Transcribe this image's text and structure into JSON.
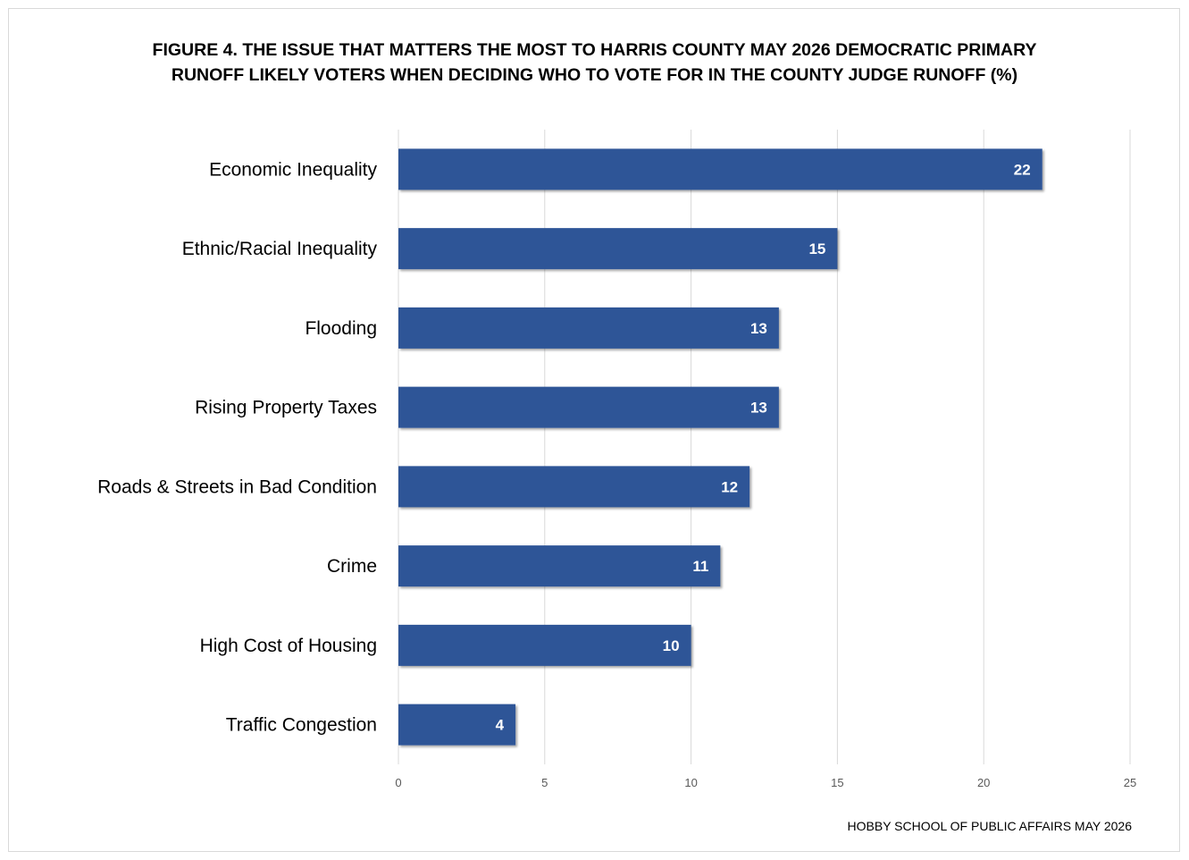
{
  "chart_data": {
    "type": "bar",
    "orientation": "horizontal",
    "title_lines": [
      "FIGURE 4. THE ISSUE THAT MATTERS THE MOST TO HARRIS COUNTY MAY 2026 DEMOCRATIC PRIMARY",
      "RUNOFF LIKELY VOTERS WHEN DECIDING WHO TO VOTE FOR IN THE COUNTY JUDGE RUNOFF (%)"
    ],
    "categories": [
      "Economic Inequality",
      "Ethnic/Racial Inequality",
      "Flooding",
      "Rising Property Taxes",
      "Roads & Streets in Bad Condition",
      "Crime",
      "High Cost of Housing",
      "Traffic Congestion"
    ],
    "values": [
      22,
      15,
      13,
      13,
      12,
      11,
      10,
      4
    ],
    "data_labels": [
      "22",
      "15",
      "13",
      "13",
      "12",
      "11",
      "10",
      "4"
    ],
    "xlim": [
      0,
      25
    ],
    "x_ticks": [
      0,
      5,
      10,
      15,
      20,
      25
    ],
    "x_tick_labels": [
      "0",
      "5",
      "10",
      "15",
      "20",
      "25"
    ],
    "grid": true,
    "bar_color": "#2f5597",
    "source": "HOBBY SCHOOL OF PUBLIC AFFAIRS MAY 2026"
  }
}
